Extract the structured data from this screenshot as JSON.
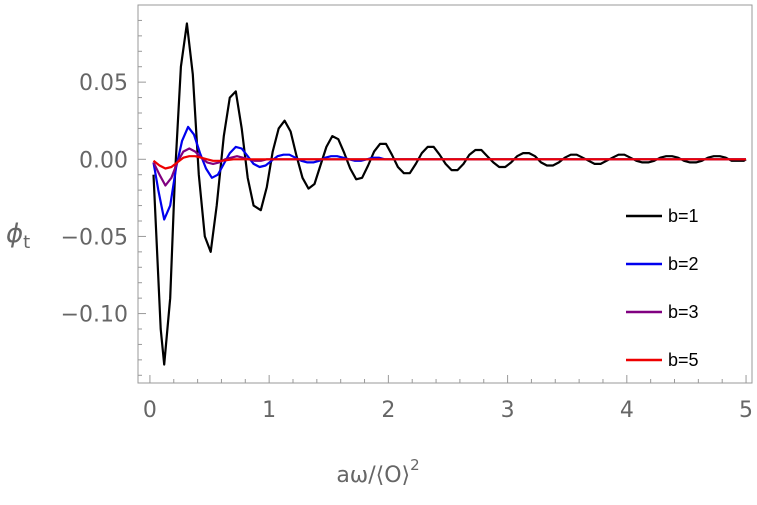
{
  "chart_data": {
    "type": "line",
    "xlabel": "aω/⟨O⟩",
    "xlabel_sup": "2",
    "ylabel": "ϕ",
    "ylabel_sub": "t",
    "xlim": [
      -0.1,
      5.05
    ],
    "ylim": [
      -0.145,
      0.1
    ],
    "xticks": [
      0,
      1,
      2,
      3,
      4,
      5
    ],
    "xtick_labels": [
      "0",
      "1",
      "2",
      "3",
      "4",
      "5"
    ],
    "yticks": [
      -0.1,
      -0.05,
      0.0,
      0.05
    ],
    "ytick_labels": [
      "−0.10",
      "−0.05",
      "0.00",
      "0.05"
    ],
    "grid": false,
    "legend_position": "lower-right",
    "series": [
      {
        "name": "b=1",
        "color": "#000000",
        "x": [
          0.03,
          0.09,
          0.12,
          0.17,
          0.21,
          0.26,
          0.31,
          0.36,
          0.41,
          0.46,
          0.51,
          0.56,
          0.62,
          0.67,
          0.72,
          0.77,
          0.82,
          0.87,
          0.93,
          0.98,
          1.03,
          1.08,
          1.13,
          1.18,
          1.23,
          1.28,
          1.33,
          1.38,
          1.43,
          1.48,
          1.53,
          1.58,
          1.63,
          1.68,
          1.73,
          1.78,
          1.83,
          1.88,
          1.93,
          1.98,
          2.03,
          2.08,
          2.13,
          2.18,
          2.23,
          2.28,
          2.33,
          2.38,
          2.43,
          2.48,
          2.53,
          2.58,
          2.63,
          2.68,
          2.73,
          2.78,
          2.83,
          2.88,
          2.93,
          2.98,
          3.03,
          3.08,
          3.13,
          3.18,
          3.23,
          3.28,
          3.33,
          3.38,
          3.43,
          3.48,
          3.53,
          3.58,
          3.63,
          3.68,
          3.73,
          3.78,
          3.83,
          3.88,
          3.93,
          3.98,
          4.03,
          4.08,
          4.13,
          4.18,
          4.23,
          4.28,
          4.33,
          4.38,
          4.43,
          4.48,
          4.53,
          4.58,
          4.63,
          4.68,
          4.73,
          4.78,
          4.83,
          4.88,
          4.93,
          4.98,
          5.0
        ],
        "y": [
          -0.01,
          -0.11,
          -0.133,
          -0.09,
          -0.01,
          0.06,
          0.088,
          0.055,
          -0.01,
          -0.05,
          -0.06,
          -0.03,
          0.015,
          0.04,
          0.044,
          0.02,
          -0.012,
          -0.03,
          -0.033,
          -0.018,
          0.005,
          0.02,
          0.025,
          0.018,
          0.002,
          -0.012,
          -0.019,
          -0.016,
          -0.004,
          0.008,
          0.015,
          0.013,
          0.004,
          -0.006,
          -0.013,
          -0.012,
          -0.004,
          0.005,
          0.01,
          0.01,
          0.003,
          -0.005,
          -0.009,
          -0.009,
          -0.003,
          0.004,
          0.008,
          0.008,
          0.003,
          -0.003,
          -0.007,
          -0.007,
          -0.003,
          0.003,
          0.006,
          0.006,
          0.002,
          -0.002,
          -0.005,
          -0.005,
          -0.002,
          0.002,
          0.004,
          0.004,
          0.002,
          -0.002,
          -0.004,
          -0.004,
          -0.002,
          0.001,
          0.003,
          0.003,
          0.001,
          -0.001,
          -0.003,
          -0.003,
          -0.001,
          0.001,
          0.003,
          0.003,
          0.001,
          -0.001,
          -0.002,
          -0.002,
          -0.001,
          0.001,
          0.002,
          0.002,
          0.001,
          -0.001,
          -0.002,
          -0.002,
          -0.001,
          0.001,
          0.002,
          0.002,
          0.001,
          -0.001,
          -0.001,
          -0.001,
          0.0
        ]
      },
      {
        "name": "b=2",
        "color": "#0000ee",
        "x": [
          0.03,
          0.07,
          0.12,
          0.17,
          0.22,
          0.27,
          0.32,
          0.37,
          0.42,
          0.47,
          0.52,
          0.57,
          0.62,
          0.67,
          0.72,
          0.77,
          0.82,
          0.87,
          0.92,
          0.97,
          1.02,
          1.07,
          1.12,
          1.17,
          1.22,
          1.27,
          1.32,
          1.37,
          1.42,
          1.47,
          1.52,
          1.57,
          1.62,
          1.67,
          1.72,
          1.77,
          1.82,
          1.87,
          1.92,
          1.97,
          2.1,
          2.3,
          2.5,
          3.0,
          3.5,
          4.0,
          4.5,
          5.0
        ],
        "y": [
          -0.002,
          -0.02,
          -0.039,
          -0.03,
          -0.005,
          0.012,
          0.021,
          0.016,
          0.004,
          -0.006,
          -0.012,
          -0.01,
          -0.003,
          0.004,
          0.008,
          0.007,
          0.002,
          -0.003,
          -0.005,
          -0.004,
          -0.001,
          0.002,
          0.003,
          0.003,
          0.001,
          -0.001,
          -0.002,
          -0.002,
          -0.001,
          0.001,
          0.002,
          0.002,
          0.001,
          0.0,
          -0.001,
          -0.001,
          0.0,
          0.001,
          0.001,
          0.0,
          0.0,
          0.0,
          0.0,
          0.0,
          0.0,
          0.0,
          0.0,
          0.0
        ]
      },
      {
        "name": "b=3",
        "color": "#800080",
        "x": [
          0.03,
          0.08,
          0.13,
          0.18,
          0.23,
          0.28,
          0.33,
          0.38,
          0.43,
          0.48,
          0.53,
          0.58,
          0.63,
          0.68,
          0.73,
          0.78,
          0.83,
          0.88,
          0.93,
          0.98,
          1.1,
          1.3,
          1.5,
          2.0,
          3.0,
          4.0,
          5.0
        ],
        "y": [
          -0.002,
          -0.01,
          -0.017,
          -0.012,
          -0.002,
          0.005,
          0.007,
          0.005,
          0.001,
          -0.002,
          -0.003,
          -0.002,
          0.0,
          0.001,
          0.002,
          0.001,
          0.0,
          -0.001,
          -0.001,
          0.0,
          0.0,
          0.0,
          0.0,
          0.0,
          0.0,
          0.0,
          0.0
        ]
      },
      {
        "name": "b=5",
        "color": "#ee0000",
        "x": [
          0.03,
          0.08,
          0.13,
          0.18,
          0.23,
          0.28,
          0.33,
          0.38,
          0.43,
          0.48,
          0.53,
          0.6,
          0.7,
          0.8,
          0.9,
          1.0,
          1.2,
          1.5,
          2.0,
          3.0,
          4.0,
          5.0
        ],
        "y": [
          -0.001,
          -0.004,
          -0.006,
          -0.005,
          -0.002,
          0.001,
          0.002,
          0.002,
          0.001,
          0.0,
          -0.001,
          -0.001,
          0.0,
          0.0,
          0.0,
          0.0,
          0.0,
          0.0,
          0.0,
          0.0,
          0.0,
          0.0
        ]
      }
    ]
  }
}
